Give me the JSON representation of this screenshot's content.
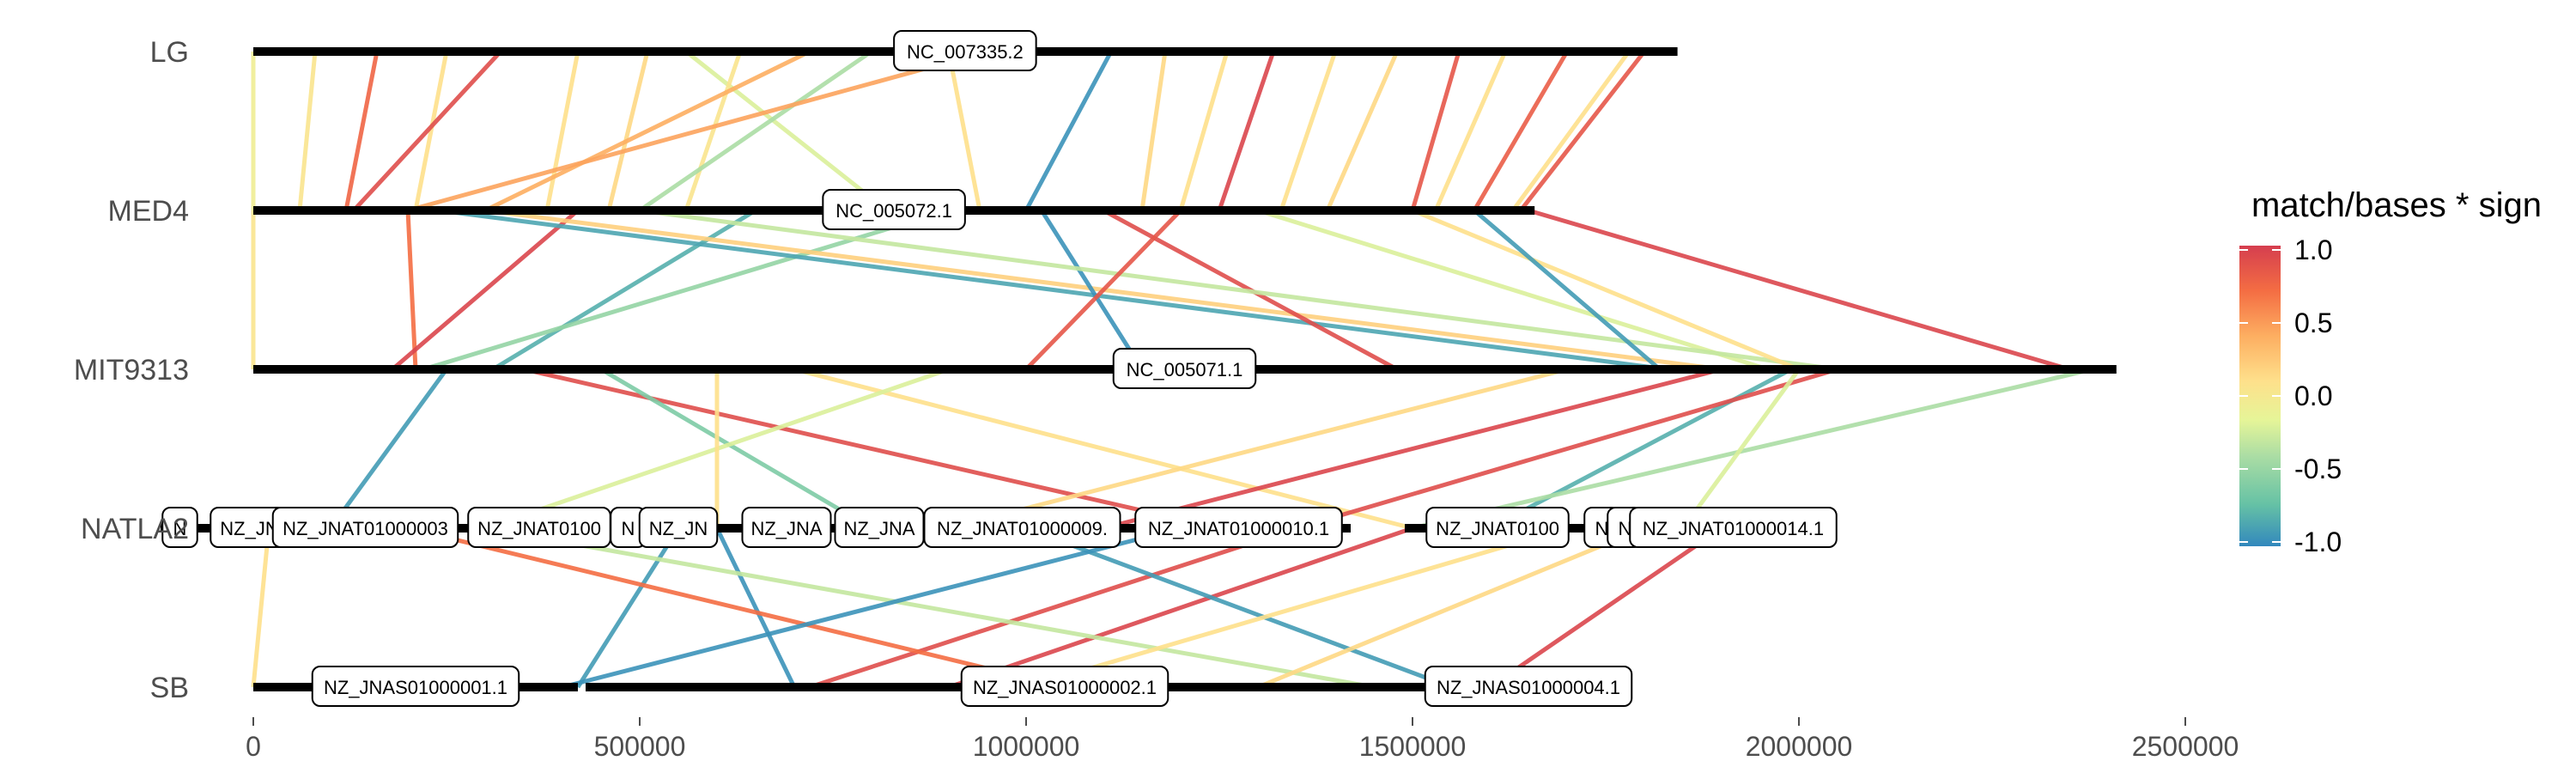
{
  "chart_data": {
    "type": "synteny",
    "x_axis": {
      "range": [
        0,
        2700000
      ],
      "ticks": [
        0,
        500000,
        1000000,
        1500000,
        2000000,
        2500000
      ],
      "tick_labels": [
        "0",
        "500000",
        "1000000",
        "1500000",
        "2000000",
        "2500000"
      ]
    },
    "genomes": [
      {
        "name": "LG",
        "length": 1842899,
        "sequences": [
          {
            "label": "NC_007335.2",
            "start": 0,
            "end": 1842899,
            "tag_center": 921000
          }
        ]
      },
      {
        "name": "MED4",
        "length": 1657990,
        "sequences": [
          {
            "label": "NC_005072.1",
            "start": 0,
            "end": 1657990,
            "tag_center": 829000
          }
        ]
      },
      {
        "name": "MIT9313",
        "length": 2410873,
        "sequences": [
          {
            "label": "NC_005071.1",
            "start": 0,
            "end": 2410873,
            "tag_center": 1205000
          }
        ]
      },
      {
        "name": "NATLA2",
        "length": 2100000,
        "sequences": [
          {
            "label": "N",
            "start": -120000,
            "end": -30000,
            "tag_center": -95000
          },
          {
            "label": "NZ_JN",
            "start": -30000,
            "end": 20000,
            "tag_center": -5000
          },
          {
            "label": "NZ_JNAT01000003",
            "start": 20000,
            "end": 270000,
            "tag_center": 145000
          },
          {
            "label": "NZ_JNAT0100",
            "start": 270000,
            "end": 470000,
            "tag_center": 370000
          },
          {
            "label": "N",
            "start": 470000,
            "end": 500000,
            "tag_center": 485000
          },
          {
            "label": "NZ_JN",
            "start": 500000,
            "end": 600000,
            "tag_center": 550000
          },
          {
            "label": "NZ_JNA",
            "start": 600000,
            "end": 760000,
            "tag_center": 690000
          },
          {
            "label": "NZ_JNA",
            "start": 760000,
            "end": 860000,
            "tag_center": 810000
          },
          {
            "label": "NZ_JNAT01000009.",
            "start": 860000,
            "end": 1130000,
            "tag_center": 995000
          },
          {
            "label": "NZ_JNAT01000010.1",
            "start": 1130000,
            "end": 1420000,
            "tag_center": 1275000
          },
          {
            "label": "NZ_JNAT0100",
            "start": 1490000,
            "end": 1730000,
            "tag_center": 1610000
          },
          {
            "label": "N",
            "start": 1730000,
            "end": 1760000,
            "tag_center": 1745000
          },
          {
            "label": "N",
            "start": 1760000,
            "end": 1790000,
            "tag_center": 1775000
          },
          {
            "label": "NZ_JNAT01000014.1",
            "start": 1790000,
            "end": 2040000,
            "tag_center": 1915000
          }
        ]
      },
      {
        "name": "SB",
        "length": 1670000,
        "sequences": [
          {
            "label": "NZ_JNAS01000001.1",
            "start": 0,
            "end": 420000,
            "tag_center": 210000
          },
          {
            "label": "NZ_JNAS01000002.1",
            "start": 430000,
            "end": 1550000,
            "tag_center": 1050000
          },
          {
            "label": "",
            "start": 1550000,
            "end": 1570000,
            "tag_center": 1560000
          },
          {
            "label": "NZ_JNAS01000004.1",
            "start": 1570000,
            "end": 1670000,
            "tag_center": 1650000
          }
        ]
      }
    ],
    "links": [
      {
        "pair": [
          0,
          1
        ],
        "value": -0.05,
        "from": 0,
        "to": 0
      },
      {
        "pair": [
          0,
          1
        ],
        "value": 0.05,
        "from": 80000,
        "to": 60000
      },
      {
        "pair": [
          0,
          1
        ],
        "value": 0.75,
        "from": 160000,
        "to": 120000
      },
      {
        "pair": [
          0,
          1
        ],
        "value": 0.1,
        "from": 250000,
        "to": 210000
      },
      {
        "pair": [
          0,
          1
        ],
        "value": 0.9,
        "from": 320000,
        "to": 130000
      },
      {
        "pair": [
          0,
          1
        ],
        "value": 0.1,
        "from": 420000,
        "to": 380000
      },
      {
        "pair": [
          0,
          1
        ],
        "value": 0.15,
        "from": 510000,
        "to": 460000
      },
      {
        "pair": [
          0,
          1
        ],
        "value": -0.2,
        "from": 560000,
        "to": 820000
      },
      {
        "pair": [
          0,
          1
        ],
        "value": 0.05,
        "from": 630000,
        "to": 560000
      },
      {
        "pair": [
          0,
          1
        ],
        "value": 0.4,
        "from": 720000,
        "to": 300000
      },
      {
        "pair": [
          0,
          1
        ],
        "value": -0.4,
        "from": 800000,
        "to": 500000
      },
      {
        "pair": [
          0,
          1
        ],
        "value": 0.1,
        "from": 900000,
        "to": 940000
      },
      {
        "pair": [
          0,
          1
        ],
        "value": 0.45,
        "from": 950000,
        "to": 200000
      },
      {
        "pair": [
          0,
          1
        ],
        "value": -0.95,
        "from": 1110000,
        "to": 1000000
      },
      {
        "pair": [
          0,
          1
        ],
        "value": 0.15,
        "from": 1180000,
        "to": 1150000
      },
      {
        "pair": [
          0,
          1
        ],
        "value": 0.1,
        "from": 1260000,
        "to": 1200000
      },
      {
        "pair": [
          0,
          1
        ],
        "value": 0.95,
        "from": 1320000,
        "to": 1250000
      },
      {
        "pair": [
          0,
          1
        ],
        "value": 0.1,
        "from": 1400000,
        "to": 1330000
      },
      {
        "pair": [
          0,
          1
        ],
        "value": 0.15,
        "from": 1480000,
        "to": 1390000
      },
      {
        "pair": [
          0,
          1
        ],
        "value": 0.85,
        "from": 1560000,
        "to": 1500000
      },
      {
        "pair": [
          0,
          1
        ],
        "value": 0.1,
        "from": 1620000,
        "to": 1530000
      },
      {
        "pair": [
          0,
          1
        ],
        "value": 0.8,
        "from": 1700000,
        "to": 1580000
      },
      {
        "pair": [
          0,
          1
        ],
        "value": 0.1,
        "from": 1780000,
        "to": 1630000
      },
      {
        "pair": [
          0,
          1
        ],
        "value": 0.85,
        "from": 1800000,
        "to": 1640000
      },
      {
        "pair": [
          1,
          2
        ],
        "value": 0.7,
        "from": 200000,
        "to": 210000
      },
      {
        "pair": [
          1,
          2
        ],
        "value": 0.95,
        "from": 420000,
        "to": 180000
      },
      {
        "pair": [
          1,
          2
        ],
        "value": -0.8,
        "from": 650000,
        "to": 310000
      },
      {
        "pair": [
          1,
          2
        ],
        "value": -0.5,
        "from": 900000,
        "to": 220000
      },
      {
        "pair": [
          1,
          2
        ],
        "value": 0.2,
        "from": 300000,
        "to": 1900000
      },
      {
        "pair": [
          1,
          2
        ],
        "value": -0.85,
        "from": 240000,
        "to": 1830000
      },
      {
        "pair": [
          1,
          2
        ],
        "value": 0.9,
        "from": 1100000,
        "to": 1480000
      },
      {
        "pair": [
          1,
          2
        ],
        "value": -0.2,
        "from": 1300000,
        "to": 1960000
      },
      {
        "pair": [
          1,
          2
        ],
        "value": 0.95,
        "from": 1650000,
        "to": 2350000
      },
      {
        "pair": [
          1,
          2
        ],
        "value": -0.95,
        "from": 1020000,
        "to": 1150000
      },
      {
        "pair": [
          1,
          2
        ],
        "value": -0.3,
        "from": 500000,
        "to": 2050000
      },
      {
        "pair": [
          1,
          2
        ],
        "value": 0.85,
        "from": 1200000,
        "to": 1000000
      },
      {
        "pair": [
          1,
          2
        ],
        "value": 0.1,
        "from": 1500000,
        "to": 2000000
      },
      {
        "pair": [
          1,
          2
        ],
        "value": -0.9,
        "from": 1580000,
        "to": 1820000
      },
      {
        "pair": [
          1,
          2
        ],
        "value": 0.05,
        "from": 0,
        "to": 0
      },
      {
        "pair": [
          2,
          3
        ],
        "value": -0.9,
        "from": 250000,
        "to": 100000
      },
      {
        "pair": [
          2,
          3
        ],
        "value": 0.9,
        "from": 350000,
        "to": 1250000
      },
      {
        "pair": [
          2,
          3
        ],
        "value": -0.6,
        "from": 450000,
        "to": 800000
      },
      {
        "pair": [
          2,
          3
        ],
        "value": 0.1,
        "from": 700000,
        "to": 1500000
      },
      {
        "pair": [
          2,
          3
        ],
        "value": -0.2,
        "from": 900000,
        "to": 300000
      },
      {
        "pair": [
          2,
          3
        ],
        "value": 0.95,
        "from": 1900000,
        "to": 1100000
      },
      {
        "pair": [
          2,
          3
        ],
        "value": -0.8,
        "from": 1990000,
        "to": 1600000
      },
      {
        "pair": [
          2,
          3
        ],
        "value": 0.9,
        "from": 2050000,
        "to": 1350000
      },
      {
        "pair": [
          2,
          3
        ],
        "value": -0.4,
        "from": 2380000,
        "to": 1500000
      },
      {
        "pair": [
          2,
          3
        ],
        "value": 0.15,
        "from": 1700000,
        "to": 900000
      },
      {
        "pair": [
          2,
          3
        ],
        "value": -0.2,
        "from": 2000000,
        "to": 1850000
      },
      {
        "pair": [
          2,
          3
        ],
        "value": 0.1,
        "from": 600000,
        "to": 600000
      },
      {
        "pair": [
          3,
          4
        ],
        "value": 0.1,
        "from": 20000,
        "to": 0
      },
      {
        "pair": [
          3,
          4
        ],
        "value": -0.9,
        "from": 550000,
        "to": 420000
      },
      {
        "pair": [
          3,
          4
        ],
        "value": -0.95,
        "from": 600000,
        "to": 700000
      },
      {
        "pair": [
          3,
          4
        ],
        "value": 0.9,
        "from": 1350000,
        "to": 720000
      },
      {
        "pair": [
          3,
          4
        ],
        "value": 0.95,
        "from": 1500000,
        "to": 900000
      },
      {
        "pair": [
          3,
          4
        ],
        "value": -0.9,
        "from": 1000000,
        "to": 1550000
      },
      {
        "pair": [
          3,
          4
        ],
        "value": 0.95,
        "from": 1900000,
        "to": 1600000
      },
      {
        "pair": [
          3,
          4
        ],
        "value": 0.7,
        "from": 200000,
        "to": 1050000
      },
      {
        "pair": [
          3,
          4
        ],
        "value": -0.3,
        "from": 300000,
        "to": 1450000
      },
      {
        "pair": [
          3,
          4
        ],
        "value": 0.15,
        "from": 1800000,
        "to": 1300000
      },
      {
        "pair": [
          3,
          4
        ],
        "value": -0.95,
        "from": 1200000,
        "to": 400000
      },
      {
        "pair": [
          3,
          4
        ],
        "value": 0.1,
        "from": 1700000,
        "to": 1000000
      }
    ],
    "legend": {
      "title": "match/bases * sign",
      "position": "right",
      "range": [
        -1,
        1
      ],
      "tick_values": [
        1,
        0.5,
        0,
        -0.5,
        -1
      ],
      "tick_labels": [
        "1.0",
        "0.5",
        "0.0",
        "-0.5",
        "-1.0"
      ],
      "colors": [
        "#3288BD",
        "#66C2A5",
        "#ABDDA4",
        "#E6F598",
        "#FEE08B",
        "#FDAE61",
        "#F46D43",
        "#D53E4F"
      ]
    },
    "grid": false
  }
}
